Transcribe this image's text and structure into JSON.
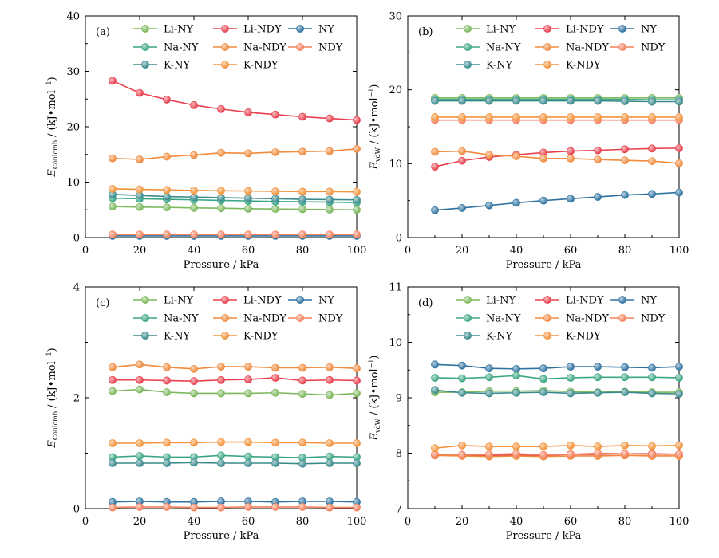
{
  "chart_data": [
    {
      "type": "line",
      "panel_label": "(a)",
      "x": [
        10,
        20,
        30,
        40,
        50,
        60,
        70,
        80,
        90,
        100
      ],
      "xlabel": "Pressure / kPa",
      "ylabel": {
        "symbol": "E",
        "subscript": "Coulomb",
        "units": " / (kJ•mol",
        "sup": "−1",
        "close": ")"
      },
      "xlim": [
        0,
        100
      ],
      "ylim": [
        0,
        40
      ],
      "xticks": [
        "0",
        "20",
        "40",
        "60",
        "80",
        "100"
      ],
      "yticks": [
        "0",
        "10",
        "20",
        "30",
        "40"
      ],
      "legend_position": "top",
      "series": [
        {
          "name": "Li-NY",
          "color": "#7cb85c",
          "values": [
            5.6,
            5.5,
            5.45,
            5.35,
            5.3,
            5.2,
            5.15,
            5.1,
            5.05,
            5.0
          ]
        },
        {
          "name": "Li-NDY",
          "color": "#e8404e",
          "values": [
            28.3,
            26.1,
            24.9,
            23.9,
            23.2,
            22.6,
            22.2,
            21.8,
            21.5,
            21.2
          ]
        },
        {
          "name": "NY",
          "color": "#2e72a0",
          "values": [
            0.3,
            0.3,
            0.3,
            0.3,
            0.3,
            0.3,
            0.3,
            0.3,
            0.3,
            0.3
          ]
        },
        {
          "name": "Na-NY",
          "color": "#3aa584",
          "values": [
            7.1,
            7.0,
            6.9,
            6.8,
            6.7,
            6.6,
            6.5,
            6.45,
            6.4,
            6.3
          ]
        },
        {
          "name": "Na-NDY",
          "color": "#f08a3c",
          "values": [
            14.3,
            14.1,
            14.6,
            14.9,
            15.3,
            15.2,
            15.4,
            15.5,
            15.6,
            16.0
          ]
        },
        {
          "name": "NDY",
          "color": "#f4805c",
          "values": [
            0.55,
            0.55,
            0.55,
            0.55,
            0.55,
            0.55,
            0.55,
            0.55,
            0.55,
            0.55
          ]
        },
        {
          "name": "K-NY",
          "color": "#3a8a8c",
          "values": [
            7.8,
            7.6,
            7.4,
            7.3,
            7.2,
            7.1,
            7.0,
            6.9,
            6.85,
            6.8
          ]
        },
        {
          "name": "K-NDY",
          "color": "#f3923a",
          "values": [
            8.8,
            8.7,
            8.6,
            8.5,
            8.45,
            8.4,
            8.35,
            8.3,
            8.3,
            8.25
          ]
        }
      ]
    },
    {
      "type": "line",
      "panel_label": "(b)",
      "x": [
        10,
        20,
        30,
        40,
        50,
        60,
        70,
        80,
        90,
        100
      ],
      "xlabel": "Pressure / kPa",
      "ylabel": {
        "symbol": "E",
        "subscript": "vdW",
        "units": " / (kJ•mol",
        "sup": "−1",
        "close": ")"
      },
      "xlim": [
        0,
        100
      ],
      "ylim": [
        0,
        30
      ],
      "xticks": [
        "0",
        "20",
        "40",
        "60",
        "80",
        "100"
      ],
      "yticks": [
        "0",
        "10",
        "20",
        "30"
      ],
      "legend_position": "top",
      "series": [
        {
          "name": "Li-NY",
          "color": "#7cb85c",
          "values": [
            18.9,
            18.9,
            18.9,
            18.9,
            18.9,
            18.9,
            18.9,
            18.9,
            18.9,
            18.9
          ]
        },
        {
          "name": "Li-NDY",
          "color": "#e8404e",
          "values": [
            9.6,
            10.4,
            10.9,
            11.2,
            11.5,
            11.7,
            11.8,
            11.95,
            12.05,
            12.1
          ]
        },
        {
          "name": "NY",
          "color": "#2e72a0",
          "values": [
            3.7,
            4.0,
            4.35,
            4.7,
            5.0,
            5.25,
            5.5,
            5.75,
            5.9,
            6.1
          ]
        },
        {
          "name": "Na-NY",
          "color": "#3aa584",
          "values": [
            18.7,
            18.7,
            18.7,
            18.7,
            18.7,
            18.7,
            18.7,
            18.7,
            18.65,
            18.65
          ]
        },
        {
          "name": "Na-NDY",
          "color": "#f08a3c",
          "values": [
            11.6,
            11.7,
            11.2,
            11.0,
            10.7,
            10.7,
            10.55,
            10.45,
            10.35,
            10.05
          ]
        },
        {
          "name": "NDY",
          "color": "#f4805c",
          "values": [
            15.9,
            15.9,
            15.9,
            15.9,
            15.9,
            15.9,
            15.9,
            15.9,
            15.9,
            15.9
          ]
        },
        {
          "name": "K-NY",
          "color": "#3a8a8c",
          "values": [
            18.5,
            18.5,
            18.5,
            18.5,
            18.5,
            18.5,
            18.5,
            18.45,
            18.4,
            18.4
          ]
        },
        {
          "name": "K-NDY",
          "color": "#f3923a",
          "values": [
            16.3,
            16.3,
            16.3,
            16.3,
            16.3,
            16.3,
            16.3,
            16.3,
            16.3,
            16.3
          ]
        }
      ]
    },
    {
      "type": "line",
      "panel_label": "(c)",
      "x": [
        10,
        20,
        30,
        40,
        50,
        60,
        70,
        80,
        90,
        100
      ],
      "xlabel": "Pressure / kPa",
      "ylabel": {
        "symbol": "E",
        "subscript": "Coulomb",
        "units": " / (kJ•mol",
        "sup": "−1",
        "close": ")"
      },
      "xlim": [
        0,
        100
      ],
      "ylim": [
        0,
        4
      ],
      "xticks": [
        "0",
        "20",
        "40",
        "60",
        "80",
        "100"
      ],
      "yticks": [
        "0",
        "2",
        "4"
      ],
      "legend_position": "top",
      "series": [
        {
          "name": "Li-NY",
          "color": "#7cb85c",
          "values": [
            2.12,
            2.15,
            2.1,
            2.08,
            2.08,
            2.08,
            2.09,
            2.07,
            2.05,
            2.08
          ]
        },
        {
          "name": "Li-NDY",
          "color": "#e8404e",
          "values": [
            2.32,
            2.32,
            2.31,
            2.3,
            2.32,
            2.33,
            2.36,
            2.31,
            2.32,
            2.31
          ]
        },
        {
          "name": "NY",
          "color": "#2e72a0",
          "values": [
            0.12,
            0.13,
            0.12,
            0.12,
            0.13,
            0.13,
            0.12,
            0.13,
            0.13,
            0.12
          ]
        },
        {
          "name": "Na-NY",
          "color": "#3aa584",
          "values": [
            0.93,
            0.95,
            0.93,
            0.93,
            0.96,
            0.94,
            0.93,
            0.92,
            0.94,
            0.93
          ]
        },
        {
          "name": "Na-NDY",
          "color": "#f08a3c",
          "values": [
            2.55,
            2.6,
            2.55,
            2.52,
            2.56,
            2.56,
            2.54,
            2.54,
            2.55,
            2.53
          ]
        },
        {
          "name": "NDY",
          "color": "#f4805c",
          "values": [
            0.02,
            0.03,
            0.03,
            0.02,
            0.02,
            0.03,
            0.03,
            0.03,
            0.02,
            0.02
          ]
        },
        {
          "name": "K-NY",
          "color": "#3a8a8c",
          "values": [
            0.82,
            0.82,
            0.82,
            0.83,
            0.82,
            0.82,
            0.82,
            0.81,
            0.82,
            0.82
          ]
        },
        {
          "name": "K-NDY",
          "color": "#f3923a",
          "values": [
            1.18,
            1.18,
            1.19,
            1.19,
            1.2,
            1.2,
            1.19,
            1.19,
            1.18,
            1.18
          ]
        }
      ]
    },
    {
      "type": "line",
      "panel_label": "(d)",
      "x": [
        10,
        20,
        30,
        40,
        50,
        60,
        70,
        80,
        90,
        100
      ],
      "xlabel": "Pressure / kPa",
      "ylabel": {
        "symbol": "E",
        "subscript": "vdW",
        "units": " / (kJ•mol",
        "sup": "−1",
        "close": ")"
      },
      "xlim": [
        0,
        100
      ],
      "ylim": [
        7,
        11
      ],
      "xticks": [
        "0",
        "20",
        "40",
        "60",
        "80",
        "100"
      ],
      "yticks": [
        "7",
        "8",
        "9",
        "10",
        "11"
      ],
      "legend_position": "top",
      "series": [
        {
          "name": "Li-NY",
          "color": "#7cb85c",
          "values": [
            9.1,
            9.1,
            9.12,
            9.12,
            9.13,
            9.11,
            9.1,
            9.11,
            9.1,
            9.1
          ]
        },
        {
          "name": "Li-NDY",
          "color": "#e8404e",
          "values": [
            7.97,
            7.97,
            7.96,
            7.97,
            7.96,
            7.98,
            7.98,
            7.99,
            7.99,
            7.98
          ]
        },
        {
          "name": "NY",
          "color": "#2e72a0",
          "values": [
            9.6,
            9.58,
            9.53,
            9.52,
            9.53,
            9.56,
            9.56,
            9.55,
            9.54,
            9.56
          ]
        },
        {
          "name": "Na-NY",
          "color": "#3aa584",
          "values": [
            9.36,
            9.35,
            9.37,
            9.4,
            9.34,
            9.36,
            9.37,
            9.37,
            9.37,
            9.36
          ]
        },
        {
          "name": "Na-NDY",
          "color": "#f08a3c",
          "values": [
            7.96,
            7.95,
            7.94,
            7.95,
            7.94,
            7.95,
            7.95,
            7.96,
            7.95,
            7.95
          ]
        },
        {
          "name": "NDY",
          "color": "#f4805c",
          "values": [
            7.98,
            7.97,
            7.98,
            7.99,
            7.97,
            7.98,
            8.0,
            7.99,
            7.98,
            7.98
          ]
        },
        {
          "name": "K-NY",
          "color": "#3a8a8c",
          "values": [
            9.14,
            9.09,
            9.08,
            9.09,
            9.1,
            9.08,
            9.09,
            9.1,
            9.08,
            9.07
          ]
        },
        {
          "name": "K-NDY",
          "color": "#f3923a",
          "values": [
            8.09,
            8.14,
            8.12,
            8.12,
            8.12,
            8.14,
            8.12,
            8.14,
            8.13,
            8.14
          ]
        }
      ]
    }
  ]
}
